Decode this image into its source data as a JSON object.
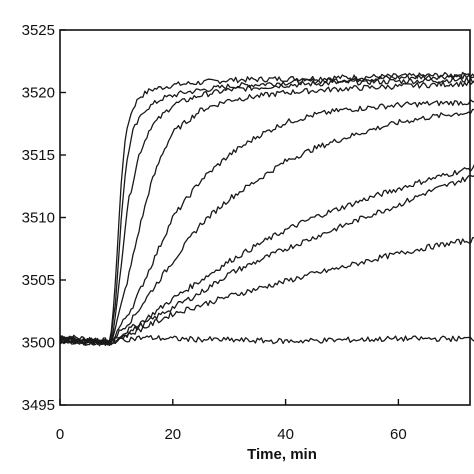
{
  "chart_data": {
    "type": "line",
    "title": "",
    "xlabel": "Time, min",
    "ylabel": "",
    "xlim": [
      0,
      75
    ],
    "ylim": [
      3495,
      3525
    ],
    "xticks": [
      0,
      20,
      40,
      60
    ],
    "yticks": [
      3495,
      3500,
      3505,
      3510,
      3515,
      3520,
      3525
    ],
    "grid": false,
    "legend": "none",
    "series": [
      {
        "x": [
          0,
          5,
          9,
          10,
          11,
          12,
          13,
          14,
          16,
          20,
          30,
          40,
          50,
          60,
          70,
          75
        ],
        "y": [
          3500.5,
          3500.3,
          3500.1,
          3506,
          3514,
          3517.5,
          3518.8,
          3519.6,
          3520.2,
          3520.6,
          3521,
          3521.1,
          3521.2,
          3521.3,
          3521.4,
          3521.4
        ]
      },
      {
        "x": [
          0,
          5,
          9,
          10,
          11,
          12,
          13,
          15,
          18,
          22,
          30,
          40,
          50,
          60,
          70,
          75
        ],
        "y": [
          3500.4,
          3500.2,
          3500,
          3504,
          3511,
          3515,
          3517,
          3518.6,
          3519.5,
          3520,
          3520.5,
          3520.8,
          3521,
          3521.2,
          3521.3,
          3521.3
        ]
      },
      {
        "x": [
          0,
          5,
          9,
          10,
          11,
          12,
          14,
          16,
          20,
          25,
          30,
          40,
          50,
          60,
          70,
          75
        ],
        "y": [
          3500.3,
          3500.2,
          3500,
          3502.5,
          3507,
          3511,
          3515,
          3517.2,
          3519,
          3519.8,
          3520.2,
          3520.6,
          3520.8,
          3520.9,
          3521,
          3521
        ]
      },
      {
        "x": [
          0,
          5,
          9,
          10,
          12,
          14,
          16,
          18,
          20,
          25,
          30,
          40,
          50,
          60,
          70,
          75
        ],
        "y": [
          3500.2,
          3500.1,
          3500,
          3501.5,
          3505,
          3509,
          3512.5,
          3515,
          3516.8,
          3518.6,
          3519.4,
          3520,
          3520.3,
          3520.5,
          3520.7,
          3520.7
        ]
      },
      {
        "x": [
          0,
          5,
          9,
          10,
          13,
          16,
          20,
          25,
          30,
          35,
          40,
          45,
          50,
          60,
          70,
          75
        ],
        "y": [
          3500.3,
          3500.1,
          3500,
          3500.8,
          3503,
          3506,
          3510,
          3513,
          3515,
          3516.5,
          3517.6,
          3518.2,
          3518.6,
          3519,
          3519.2,
          3519.2
        ]
      },
      {
        "x": [
          0,
          5,
          9,
          10,
          13,
          16,
          20,
          25,
          30,
          35,
          40,
          45,
          50,
          55,
          60,
          65,
          70,
          75
        ],
        "y": [
          3500.2,
          3500.1,
          3500,
          3500.6,
          3502,
          3504,
          3506.5,
          3509.5,
          3511.5,
          3513,
          3514.5,
          3515.5,
          3516.3,
          3517,
          3517.6,
          3518,
          3518.3,
          3518.5
        ]
      },
      {
        "x": [
          0,
          5,
          9,
          10,
          15,
          20,
          25,
          30,
          35,
          40,
          45,
          50,
          55,
          60,
          65,
          70,
          75
        ],
        "y": [
          3500.1,
          3500,
          3499.9,
          3500.4,
          3501.8,
          3503.5,
          3505,
          3506.5,
          3507.8,
          3509,
          3510,
          3510.8,
          3511.6,
          3512.3,
          3513,
          3513.6,
          3514.2
        ]
      },
      {
        "x": [
          0,
          5,
          9,
          10,
          15,
          20,
          25,
          30,
          35,
          40,
          45,
          50,
          55,
          60,
          65,
          70,
          75
        ],
        "y": [
          3500.1,
          3500,
          3499.9,
          3500.3,
          3501.5,
          3502.8,
          3504,
          3505.5,
          3506.5,
          3507.5,
          3508.4,
          3509.3,
          3510.2,
          3511,
          3512,
          3512.8,
          3513.6
        ]
      },
      {
        "x": [
          0,
          5,
          9,
          10,
          15,
          20,
          25,
          30,
          35,
          40,
          45,
          50,
          55,
          60,
          65,
          70,
          75
        ],
        "y": [
          3500.1,
          3500,
          3499.9,
          3500.2,
          3501.2,
          3502.3,
          3503,
          3503.7,
          3504.3,
          3504.9,
          3505.5,
          3506,
          3506.6,
          3507.1,
          3507.6,
          3508,
          3508.3
        ]
      },
      {
        "x": [
          0,
          5,
          9,
          10,
          15,
          20,
          30,
          40,
          50,
          60,
          70,
          75
        ],
        "y": [
          3500.3,
          3500.2,
          3500,
          3500.2,
          3500.4,
          3500.3,
          3500.2,
          3500.1,
          3500.2,
          3500.3,
          3500.3,
          3500.3
        ]
      }
    ]
  }
}
